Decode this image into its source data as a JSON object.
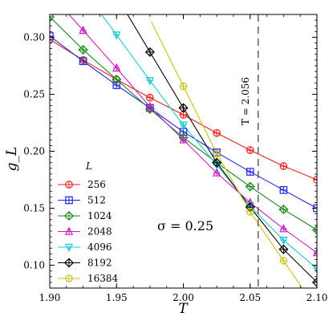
{
  "chart_data": {
    "type": "line",
    "title": "",
    "xlabel": "T",
    "ylabel": "g_L",
    "xlim": [
      1.9,
      2.1
    ],
    "ylim": [
      0.08,
      0.32
    ],
    "xticks": [
      "1.90",
      "1.95",
      "2.00",
      "2.05",
      "2.10"
    ],
    "yticks": [
      "0.10",
      "0.15",
      "0.20",
      "0.25",
      "0.30"
    ],
    "grid": false,
    "legend_title": "L",
    "legend_position": "lower-left",
    "annotation": "σ = 0.25",
    "vline": {
      "x": 2.056,
      "label": "T = 2.056"
    },
    "series": [
      {
        "name": "256",
        "color": "#e8211b",
        "marker": "circle",
        "x": [
          1.9,
          1.925,
          1.95,
          1.975,
          2.0,
          2.025,
          2.05,
          2.075,
          2.1
        ],
        "y": [
          0.298,
          0.28,
          0.263,
          0.247,
          0.232,
          0.216,
          0.201,
          0.187,
          0.175
        ]
      },
      {
        "name": "512",
        "color": "#1f25e0",
        "marker": "square",
        "x": [
          1.9,
          1.925,
          1.95,
          1.975,
          2.0,
          2.025,
          2.05,
          2.075,
          2.1
        ],
        "y": [
          0.301,
          0.279,
          0.258,
          0.238,
          0.217,
          0.199,
          0.182,
          0.166,
          0.15
        ]
      },
      {
        "name": "1024",
        "color": "#18891a",
        "marker": "diamond",
        "x": [
          1.9,
          1.925,
          1.95,
          1.975,
          2.0,
          2.025,
          2.05,
          2.075,
          2.1
        ],
        "y": [
          0.318,
          0.289,
          0.263,
          0.237,
          0.212,
          0.19,
          0.169,
          0.149,
          0.131
        ]
      },
      {
        "name": "2048",
        "color": "#cc1fc2",
        "marker": "triangle-up",
        "x": [
          1.925,
          1.95,
          1.975,
          2.0,
          2.025,
          2.05,
          2.075,
          2.1
        ],
        "y": [
          0.306,
          0.273,
          0.239,
          0.21,
          0.181,
          0.155,
          0.132,
          0.111
        ]
      },
      {
        "name": "4096",
        "color": "#1ac9d4",
        "marker": "triangle-down",
        "x": [
          1.95,
          1.975,
          2.0,
          2.025,
          2.05,
          2.075,
          2.1
        ],
        "y": [
          0.302,
          0.262,
          0.223,
          0.188,
          0.152,
          0.122,
          0.097
        ]
      },
      {
        "name": "8192",
        "color": "#000000",
        "marker": "diamond",
        "x": [
          1.975,
          2.0,
          2.025,
          2.05,
          2.075,
          2.1
        ],
        "y": [
          0.287,
          0.238,
          0.19,
          0.151,
          0.114,
          0.085
        ]
      },
      {
        "name": "16384",
        "color": "#c8c21a",
        "marker": "circle",
        "x": [
          2.0,
          2.025,
          2.05,
          2.075
        ],
        "y": [
          0.257,
          0.198,
          0.147,
          0.104
        ]
      }
    ]
  }
}
